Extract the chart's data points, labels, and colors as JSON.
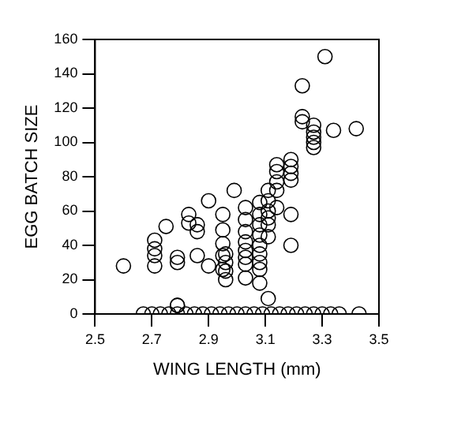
{
  "chart_data": {
    "type": "scatter",
    "xlabel": "WING LENGTH (mm)",
    "ylabel": "EGG BATCH SIZE",
    "xlim": [
      2.5,
      3.5
    ],
    "xticks": [
      2.5,
      2.7,
      2.9,
      3.1,
      3.3,
      3.5
    ],
    "ylim": [
      0,
      160
    ],
    "yticks": [
      0,
      20,
      40,
      60,
      80,
      100,
      120,
      140,
      160
    ],
    "marker": "circle",
    "grid": false,
    "series": [
      {
        "color": "#000000",
        "x": [
          2.6,
          2.71,
          2.71,
          2.71,
          2.71,
          2.75,
          2.79,
          2.79,
          2.79,
          2.83,
          2.83,
          2.86,
          2.86,
          2.86,
          2.9,
          2.9,
          2.95,
          2.95,
          2.95,
          2.95,
          2.95,
          2.99,
          2.96,
          2.96,
          2.96,
          2.96,
          3.03,
          3.03,
          3.03,
          3.03,
          3.03,
          3.03,
          3.03,
          3.08,
          3.08,
          3.08,
          3.08,
          3.08,
          3.08,
          3.08,
          3.08,
          3.11,
          3.11,
          3.11,
          3.11,
          3.11,
          3.11,
          3.14,
          3.14,
          3.14,
          3.14,
          3.14,
          3.19,
          3.19,
          3.19,
          3.19,
          3.19,
          3.19,
          3.23,
          3.23,
          3.23,
          3.27,
          3.27,
          3.27,
          3.27,
          3.27,
          3.31,
          3.34,
          3.42,
          3.03,
          3.08,
          3.11,
          2.79,
          2.67,
          2.7,
          2.73,
          2.76,
          2.79,
          2.82,
          2.85,
          2.88,
          2.91,
          2.94,
          2.97,
          3.0,
          3.03,
          3.06,
          3.09,
          3.12,
          3.15,
          3.18,
          3.21,
          3.24,
          3.27,
          3.3,
          3.33,
          3.36,
          3.43
        ],
        "values": [
          28,
          28,
          43,
          38,
          34,
          51,
          33,
          30,
          5,
          58,
          53,
          52,
          48,
          34,
          66,
          28,
          58,
          49,
          41,
          34,
          26,
          72,
          35,
          30,
          25,
          20,
          62,
          55,
          48,
          42,
          37,
          33,
          29,
          65,
          58,
          52,
          46,
          40,
          35,
          30,
          26,
          72,
          66,
          60,
          56,
          52,
          45,
          87,
          83,
          77,
          72,
          62,
          90,
          86,
          82,
          78,
          58,
          40,
          133,
          115,
          112,
          110,
          106,
          103,
          100,
          97,
          150,
          107,
          108,
          21,
          18,
          9,
          5,
          0,
          0,
          0,
          0,
          0,
          0,
          0,
          0,
          0,
          0,
          0,
          0,
          0,
          0,
          0,
          0,
          0,
          0,
          0,
          0,
          0,
          0,
          0,
          0,
          0
        ]
      }
    ]
  }
}
